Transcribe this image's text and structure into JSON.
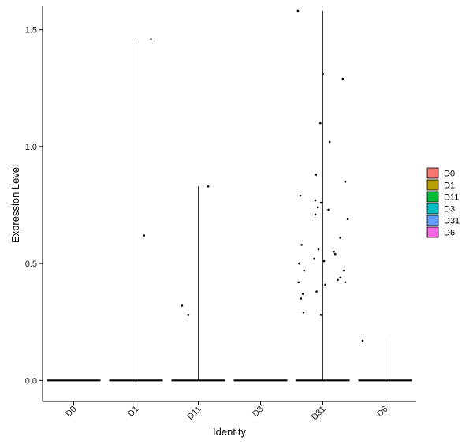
{
  "chart_data": {
    "type": "violin",
    "xlabel": "Identity",
    "ylabel": "Expression Level",
    "categories": [
      "D0",
      "D1",
      "D11",
      "D3",
      "D31",
      "D6"
    ],
    "colors": {
      "D0": "#F8766D",
      "D1": "#B79F00",
      "D11": "#00BA38",
      "D3": "#00BFC4",
      "D31": "#619CFF",
      "D6": "#F564E3"
    },
    "ylim": [
      -0.09,
      1.6
    ],
    "yticks": [
      "0.0",
      "0.5",
      "1.0",
      "1.5"
    ],
    "violin_max": {
      "D0": 0.0,
      "D1": 1.46,
      "D11": 0.83,
      "D3": 0.0,
      "D31": 1.58,
      "D6": 0.17
    },
    "points": [
      {
        "group": "D1",
        "jitter": 0.24,
        "y": 1.46
      },
      {
        "group": "D1",
        "jitter": 0.13,
        "y": 0.62
      },
      {
        "group": "D11",
        "jitter": -0.26,
        "y": 0.32
      },
      {
        "group": "D11",
        "jitter": -0.16,
        "y": 0.28
      },
      {
        "group": "D11",
        "jitter": 0.16,
        "y": 0.83
      },
      {
        "group": "D31",
        "jitter": -0.4,
        "y": 1.58
      },
      {
        "group": "D31",
        "jitter": 0.0,
        "y": 1.31
      },
      {
        "group": "D31",
        "jitter": 0.32,
        "y": 1.29
      },
      {
        "group": "D31",
        "jitter": -0.04,
        "y": 1.1
      },
      {
        "group": "D31",
        "jitter": 0.11,
        "y": 1.02
      },
      {
        "group": "D31",
        "jitter": -0.11,
        "y": 0.88
      },
      {
        "group": "D31",
        "jitter": 0.36,
        "y": 0.85
      },
      {
        "group": "D31",
        "jitter": -0.36,
        "y": 0.79
      },
      {
        "group": "D31",
        "jitter": -0.12,
        "y": 0.77
      },
      {
        "group": "D31",
        "jitter": -0.03,
        "y": 0.76
      },
      {
        "group": "D31",
        "jitter": -0.08,
        "y": 0.74
      },
      {
        "group": "D31",
        "jitter": 0.09,
        "y": 0.73
      },
      {
        "group": "D31",
        "jitter": -0.12,
        "y": 0.71
      },
      {
        "group": "D31",
        "jitter": 0.4,
        "y": 0.69
      },
      {
        "group": "D31",
        "jitter": 0.28,
        "y": 0.61
      },
      {
        "group": "D31",
        "jitter": -0.34,
        "y": 0.58
      },
      {
        "group": "D31",
        "jitter": -0.07,
        "y": 0.56
      },
      {
        "group": "D31",
        "jitter": 0.18,
        "y": 0.55
      },
      {
        "group": "D31",
        "jitter": 0.2,
        "y": 0.54
      },
      {
        "group": "D31",
        "jitter": -0.14,
        "y": 0.52
      },
      {
        "group": "D31",
        "jitter": 0.02,
        "y": 0.51
      },
      {
        "group": "D31",
        "jitter": -0.38,
        "y": 0.5
      },
      {
        "group": "D31",
        "jitter": -0.3,
        "y": 0.47
      },
      {
        "group": "D31",
        "jitter": 0.34,
        "y": 0.47
      },
      {
        "group": "D31",
        "jitter": 0.28,
        "y": 0.44
      },
      {
        "group": "D31",
        "jitter": 0.24,
        "y": 0.43
      },
      {
        "group": "D31",
        "jitter": -0.39,
        "y": 0.42
      },
      {
        "group": "D31",
        "jitter": 0.36,
        "y": 0.42
      },
      {
        "group": "D31",
        "jitter": 0.04,
        "y": 0.41
      },
      {
        "group": "D31",
        "jitter": -0.1,
        "y": 0.38
      },
      {
        "group": "D31",
        "jitter": -0.32,
        "y": 0.37
      },
      {
        "group": "D31",
        "jitter": -0.35,
        "y": 0.35
      },
      {
        "group": "D31",
        "jitter": -0.31,
        "y": 0.29
      },
      {
        "group": "D31",
        "jitter": -0.03,
        "y": 0.28
      },
      {
        "group": "D6",
        "jitter": -0.36,
        "y": 0.17
      }
    ],
    "legend": {
      "position": "right",
      "entries": [
        "D0",
        "D1",
        "D11",
        "D3",
        "D31",
        "D6"
      ]
    },
    "grid": false
  }
}
